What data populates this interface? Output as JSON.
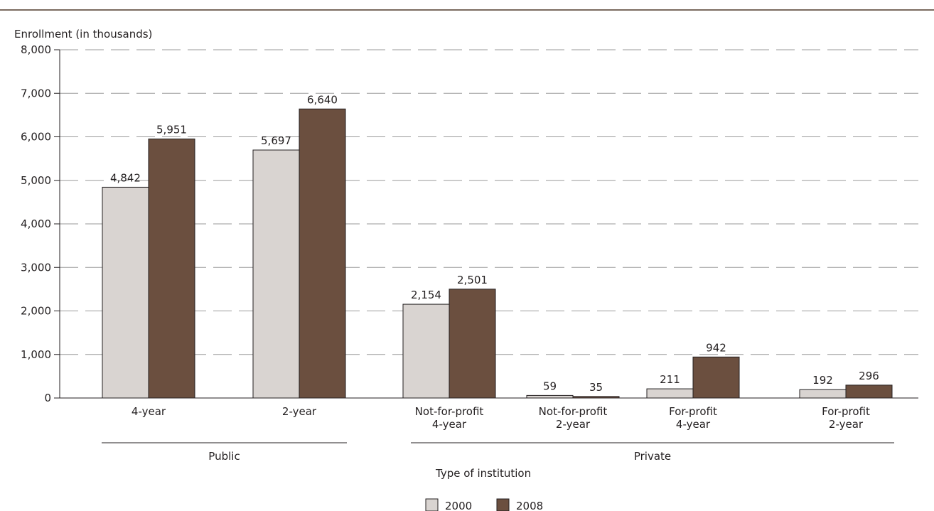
{
  "chart_data": {
    "type": "bar",
    "ylabel": "Enrollment (in thousands)",
    "xlabel": "Type of institution",
    "ylim": [
      0,
      8000
    ],
    "yticks": [
      "0",
      "1,000",
      "2,000",
      "3,000",
      "4,000",
      "5,000",
      "6,000",
      "7,000",
      "8,000"
    ],
    "grid": true,
    "categories": [
      {
        "lines": [
          "4-year"
        ]
      },
      {
        "lines": [
          "2-year"
        ]
      },
      {
        "lines": [
          "Not-for-profit",
          "4-year"
        ]
      },
      {
        "lines": [
          "Not-for-profit",
          "2-year"
        ]
      },
      {
        "lines": [
          "For-profit",
          "4-year"
        ]
      },
      {
        "lines": [
          "For-profit",
          "2-year"
        ]
      }
    ],
    "groups": [
      {
        "label": "Public",
        "categories": [
          0,
          1
        ]
      },
      {
        "label": "Private",
        "categories": [
          2,
          3,
          4,
          5
        ]
      }
    ],
    "series": [
      {
        "name": "2000",
        "color": "#d9d4d1",
        "values": [
          4842,
          5697,
          2154,
          59,
          211,
          192
        ],
        "labels": [
          "4,842",
          "5,697",
          "2,154",
          "59",
          "211",
          "192"
        ]
      },
      {
        "name": "2008",
        "color": "#6b4f3f",
        "values": [
          5951,
          6640,
          2501,
          35,
          942,
          296
        ],
        "labels": [
          "5,951",
          "6,640",
          "2,501",
          "35",
          "942",
          "296"
        ]
      }
    ],
    "legend_position": "bottom-center"
  },
  "colors": {
    "rule": "#7a6a5f",
    "axis": "#231f20",
    "grid": "#9a9a9a",
    "bar_border": "#231f20"
  }
}
